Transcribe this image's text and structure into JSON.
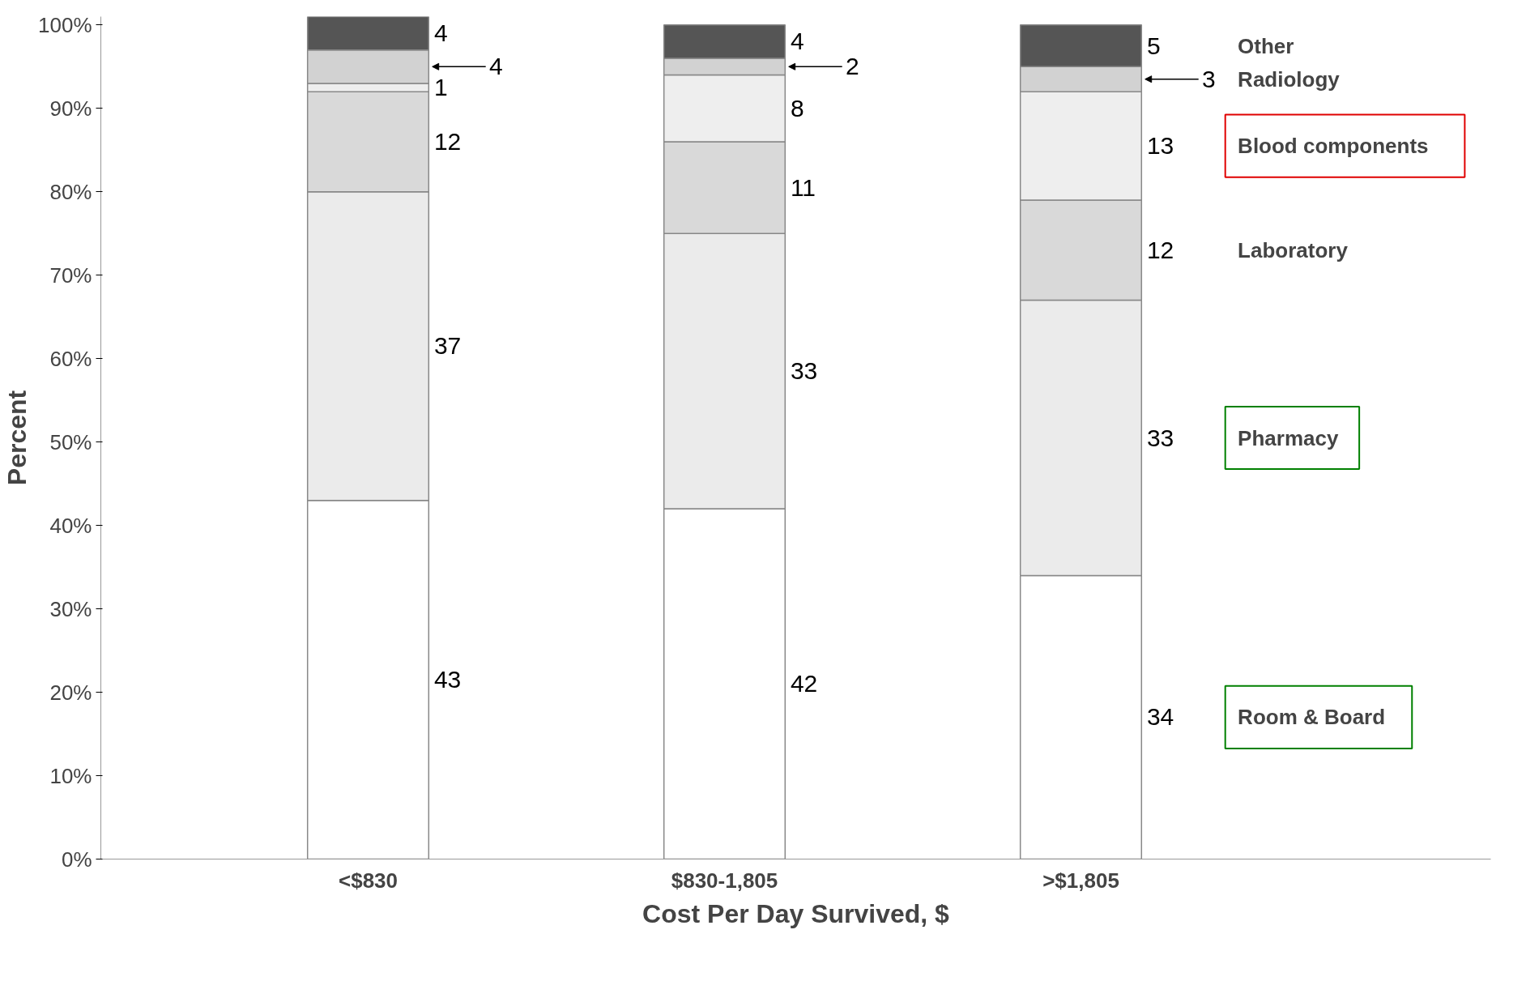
{
  "chart_data": {
    "type": "bar",
    "stacked": true,
    "xlabel": "Cost Per Day Survived, $",
    "ylabel": "Percent",
    "categories": [
      "<$830",
      "$830-1,805",
      ">$1,805"
    ],
    "series": [
      {
        "name": "Room & Board",
        "color": "#ffffff",
        "values": [
          43,
          42,
          34
        ]
      },
      {
        "name": "Pharmacy",
        "color": "#ebebeb",
        "values": [
          37,
          33,
          33
        ]
      },
      {
        "name": "Laboratory",
        "color": "#d9d9d9",
        "values": [
          12,
          11,
          12
        ]
      },
      {
        "name": "Blood components",
        "color": "#eeeeee",
        "values": [
          1,
          8,
          13
        ]
      },
      {
        "name": "Radiology",
        "color": "#d2d2d2",
        "values": [
          4,
          2,
          3
        ]
      },
      {
        "name": "Other",
        "color": "#555555",
        "values": [
          4,
          4,
          5
        ]
      }
    ],
    "ylim": [
      0,
      101
    ],
    "yticks": [
      {
        "value": 0,
        "label": "0%"
      },
      {
        "value": 10,
        "label": "10%"
      },
      {
        "value": 20,
        "label": "20%"
      },
      {
        "value": 30,
        "label": "30%"
      },
      {
        "value": 40,
        "label": "40%"
      },
      {
        "value": 50,
        "label": "50%"
      },
      {
        "value": 60,
        "label": "60%"
      },
      {
        "value": 70,
        "label": "70%"
      },
      {
        "value": 80,
        "label": "80%"
      },
      {
        "value": 90,
        "label": "90%"
      },
      {
        "value": 100,
        "label": "100%"
      }
    ],
    "data_labels": true,
    "legend": false,
    "grid": false
  }
}
